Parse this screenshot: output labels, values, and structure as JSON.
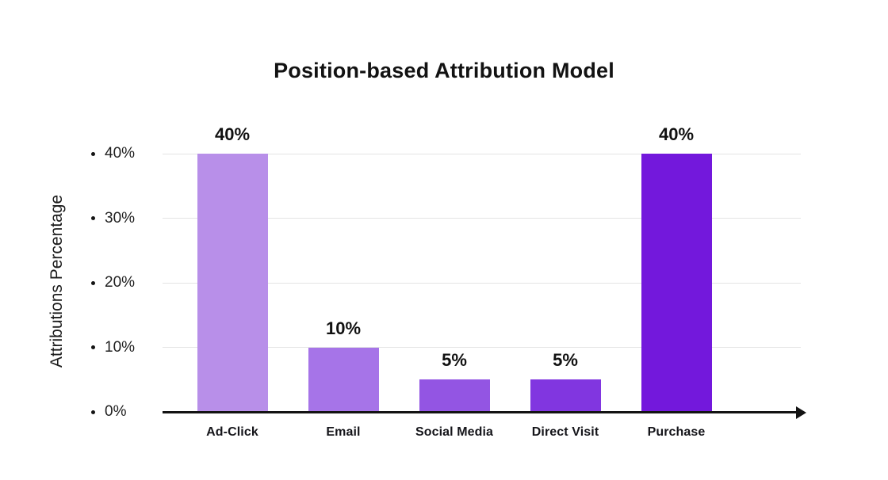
{
  "chart_data": {
    "type": "bar",
    "title": "Position-based Attribution Model",
    "ylabel": "Attributions Percentage",
    "xlabel": "",
    "categories": [
      "Ad-Click",
      "Email",
      "Social Media",
      "Direct Visit",
      "Purchase"
    ],
    "values": [
      40,
      10,
      5,
      5,
      40
    ],
    "value_labels": [
      "40%",
      "10%",
      "5%",
      "5%",
      "40%"
    ],
    "bar_colors": [
      "#b88fe9",
      "#a674e8",
      "#9355e3",
      "#8136e0",
      "#7318dc"
    ],
    "yticks": [
      {
        "value": 0,
        "label": "0%"
      },
      {
        "value": 10,
        "label": "10%"
      },
      {
        "value": 20,
        "label": "20%"
      },
      {
        "value": 30,
        "label": "30%"
      },
      {
        "value": 40,
        "label": "40%"
      }
    ],
    "ylim": [
      0,
      40
    ],
    "grid": true,
    "legend": false,
    "axis_color": "#131313",
    "grid_color": "#e4e4e4",
    "title_color": "#121212",
    "text_color": "#1f1f1f"
  }
}
